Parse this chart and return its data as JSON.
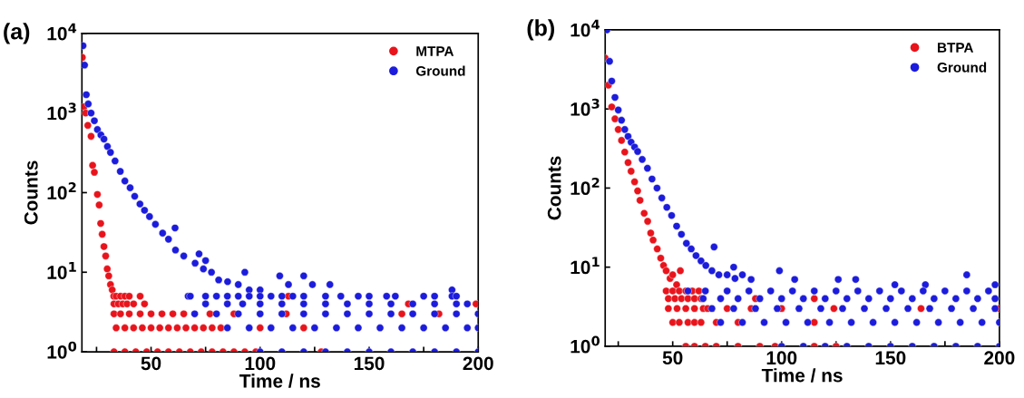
{
  "chart_data": [
    {
      "type": "scatter",
      "title": "(a)",
      "xlabel": "Time / ns",
      "ylabel": "Counts",
      "log": "y",
      "marker": "circle",
      "legend": "top right",
      "grid": false,
      "xlim": [
        18.3,
        200
      ],
      "xticks": [
        {
          "value": 25,
          "label": null
        },
        50,
        {
          "value": 75,
          "label": null
        },
        100,
        {
          "value": 125,
          "label": null
        },
        150,
        {
          "value": 175,
          "label": null
        },
        200
      ],
      "ylim": [
        1,
        10000
      ],
      "yticks": [
        {
          "value": 1,
          "label": "10$^{0}$"
        },
        {
          "value": 10,
          "label": "10$^{1}$"
        },
        {
          "value": 100,
          "label": "10$^{2}$"
        },
        {
          "value": 1000,
          "label": "10$^{3}$"
        },
        {
          "value": 10000,
          "label": "10$^{4}$"
        }
      ],
      "series": [
        {
          "name": "MTPA",
          "color": "#e8141c",
          "x": [
            18.5,
            19.3,
            20,
            21,
            22.5,
            23.2,
            24,
            25.4,
            26.2,
            26.9,
            27.6,
            28.4,
            29.2,
            29.9,
            30.6,
            31.4,
            32.2,
            32.9,
            34,
            36,
            38,
            40,
            45,
            113,
            33,
            35,
            37,
            39,
            42,
            47,
            168,
            199,
            33,
            36,
            40,
            45,
            50,
            55,
            60,
            65,
            77,
            88,
            112,
            165,
            182,
            34,
            38,
            42,
            46,
            50,
            54,
            58,
            62,
            66,
            70,
            74,
            78,
            82,
            100,
            120,
            33,
            38,
            43,
            48,
            53,
            58,
            63,
            68,
            73,
            78,
            83,
            88,
            93,
            98,
            128
          ],
          "values": [
            5000,
            1200,
            1000,
            700,
            510,
            220,
            180,
            95,
            70,
            41,
            30,
            21,
            16,
            11,
            9,
            7,
            6,
            5,
            5,
            5,
            5,
            5,
            5,
            5,
            4,
            4,
            4,
            4,
            4,
            4,
            4,
            4,
            3,
            3,
            3,
            3,
            3,
            3,
            3,
            3,
            3,
            3,
            3,
            3,
            3,
            2,
            2,
            2,
            2,
            2,
            2,
            2,
            2,
            2,
            2,
            2,
            2,
            2,
            2,
            2,
            1,
            1,
            1,
            1,
            1,
            1,
            1,
            1,
            1,
            1,
            1,
            1,
            1,
            1,
            1
          ]
        },
        {
          "name": "Ground",
          "color": "#1c1cdc",
          "x": [
            18.8,
            19.5,
            20.3,
            21.2,
            22.5,
            24,
            25.4,
            27,
            28.4,
            30,
            31.4,
            33.5,
            35.9,
            38,
            40.4,
            42.5,
            44.9,
            47,
            49.3,
            52,
            55.3,
            58,
            61.2,
            65,
            70.2,
            74,
            77.7,
            81,
            85.1,
            90,
            95,
            100,
            61,
            67,
            72,
            75,
            93,
            109,
            120,
            132,
            188,
            113,
            124,
            68,
            75,
            80,
            85,
            90,
            95,
            100,
            105,
            110,
            115,
            120,
            130,
            137,
            145,
            150,
            158,
            162,
            175,
            180,
            188,
            190,
            75,
            85,
            92,
            100,
            110,
            120,
            130,
            140,
            150,
            160,
            170,
            180,
            190,
            195,
            70,
            80,
            90,
            100,
            110,
            120,
            130,
            140,
            150,
            160,
            170,
            180,
            190,
            200,
            85,
            95,
            105,
            115,
            125,
            135,
            145,
            155,
            165,
            175,
            185,
            195,
            200,
            100,
            110,
            120,
            130,
            140,
            150,
            160,
            170,
            180,
            190,
            200
          ],
          "values": [
            7000,
            4000,
            1700,
            1300,
            1000,
            800,
            620,
            530,
            470,
            380,
            320,
            250,
            185,
            140,
            115,
            90,
            72,
            60,
            50,
            40,
            31,
            26,
            19,
            16,
            13,
            11,
            10,
            8,
            7.6,
            7,
            6,
            6,
            36,
            5,
            17,
            14,
            10,
            9,
            9,
            7,
            6,
            7,
            7,
            5,
            5,
            5,
            5,
            5,
            5,
            5,
            5,
            5,
            5,
            5,
            5,
            5,
            5,
            5,
            5,
            5,
            5,
            5,
            5,
            5,
            4,
            4,
            4,
            4,
            4,
            4,
            4,
            4,
            4,
            4,
            4,
            4,
            4,
            4,
            3,
            3,
            3,
            3,
            3,
            3,
            3,
            3,
            3,
            3,
            3,
            3,
            3,
            3,
            2,
            2,
            2,
            2,
            2,
            2,
            2,
            2,
            2,
            2,
            2,
            2,
            2,
            1,
            1,
            1,
            1,
            1,
            1,
            1,
            1,
            1,
            1,
            1
          ]
        }
      ]
    },
    {
      "type": "scatter",
      "title": "(b)",
      "xlabel": "Time / ns",
      "ylabel": "Counts",
      "log": "y",
      "marker": "circle",
      "legend": "top right",
      "grid": false,
      "xlim": [
        19,
        200
      ],
      "xticks": [
        {
          "value": 25,
          "label": null
        },
        50,
        {
          "value": 75,
          "label": null
        },
        100,
        {
          "value": 125,
          "label": null
        },
        150,
        {
          "value": 175,
          "label": null
        },
        200
      ],
      "ylim": [
        1,
        10000
      ],
      "yticks": [
        {
          "value": 1,
          "label": "10$^{0}$"
        },
        {
          "value": 10,
          "label": "10$^{1}$"
        },
        {
          "value": 100,
          "label": "10$^{2}$"
        },
        {
          "value": 1000,
          "label": "10$^{3}$"
        },
        {
          "value": 10000,
          "label": "10$^{4}$"
        }
      ],
      "series": [
        {
          "name": "BTPA",
          "color": "#e8141c",
          "x": [
            19,
            20.5,
            22,
            23.5,
            25,
            26.5,
            28,
            29.5,
            30.9,
            32.5,
            33.9,
            35,
            36.9,
            38.5,
            39.9,
            41,
            42.9,
            44.5,
            45.8,
            47,
            48.8,
            50,
            51.8,
            53.5,
            47,
            50,
            53,
            56,
            59,
            62,
            48,
            51,
            54,
            57,
            60,
            63,
            88,
            115,
            48,
            52,
            56,
            60,
            64,
            66,
            75,
            86,
            100,
            124,
            164,
            200,
            50,
            53,
            57,
            60,
            63,
            70,
            80,
            115,
            56,
            60,
            65,
            70,
            80,
            90,
            97,
            115,
            125
          ],
          "values": [
            4400,
            2000,
            1060,
            750,
            550,
            400,
            285,
            210,
            163,
            120,
            92,
            70,
            48,
            38,
            27,
            22,
            17,
            13,
            10.5,
            9,
            7.2,
            8,
            6,
            9,
            5,
            5,
            5,
            5,
            5,
            5,
            4,
            4,
            4,
            4,
            4,
            4,
            4,
            4,
            3,
            3,
            3,
            3,
            3,
            3,
            3,
            3,
            3,
            3,
            3,
            3,
            2,
            2,
            2,
            2,
            2,
            2,
            2,
            2,
            1,
            1,
            1,
            1,
            1,
            1,
            1,
            1,
            1
          ]
        },
        {
          "name": "Ground",
          "color": "#1c1cdc",
          "x": [
            19.8,
            21,
            22,
            23.5,
            25,
            26.5,
            28,
            29.5,
            30.9,
            32.5,
            33.9,
            36,
            38.4,
            40.5,
            42.8,
            45,
            47.3,
            49.5,
            51.8,
            54,
            56.3,
            58.5,
            60.7,
            63,
            65.2,
            68,
            71.2,
            75,
            78.6,
            82,
            86,
            69,
            78,
            99,
            106,
            126,
            134,
            185,
            198,
            152,
            166,
            57,
            65,
            75,
            85,
            95,
            105,
            115,
            125,
            135,
            145,
            155,
            165,
            175,
            185,
            195,
            64,
            72,
            80,
            90,
            100,
            110,
            120,
            130,
            140,
            150,
            160,
            170,
            180,
            190,
            198,
            68,
            78,
            88,
            98,
            108,
            118,
            128,
            138,
            148,
            158,
            168,
            178,
            188,
            198,
            72,
            82,
            92,
            102,
            112,
            122,
            132,
            142,
            152,
            162,
            172,
            182,
            192,
            200,
            100,
            110,
            120,
            130,
            140,
            150,
            160,
            170,
            180,
            190,
            200
          ],
          "values": [
            10000,
            4000,
            2250,
            1400,
            970,
            720,
            550,
            450,
            380,
            330,
            290,
            230,
            178,
            130,
            100,
            75,
            57,
            45,
            33,
            26,
            20,
            17,
            14,
            12,
            10.5,
            9,
            8,
            8,
            7.2,
            8,
            7,
            18,
            10,
            9,
            7,
            7,
            7,
            8,
            6,
            6,
            6,
            5,
            5,
            5,
            5,
            5,
            5,
            5,
            5,
            5,
            5,
            5,
            5,
            5,
            5,
            5,
            4,
            4,
            4,
            4,
            4,
            4,
            4,
            4,
            4,
            4,
            4,
            4,
            4,
            4,
            4,
            3,
            3,
            3,
            3,
            3,
            3,
            3,
            3,
            3,
            3,
            3,
            3,
            3,
            3,
            2,
            2,
            2,
            2,
            2,
            2,
            2,
            2,
            2,
            2,
            2,
            2,
            2,
            2,
            1,
            1,
            1,
            1,
            1,
            1,
            1,
            1,
            1,
            1,
            1
          ]
        }
      ]
    }
  ]
}
